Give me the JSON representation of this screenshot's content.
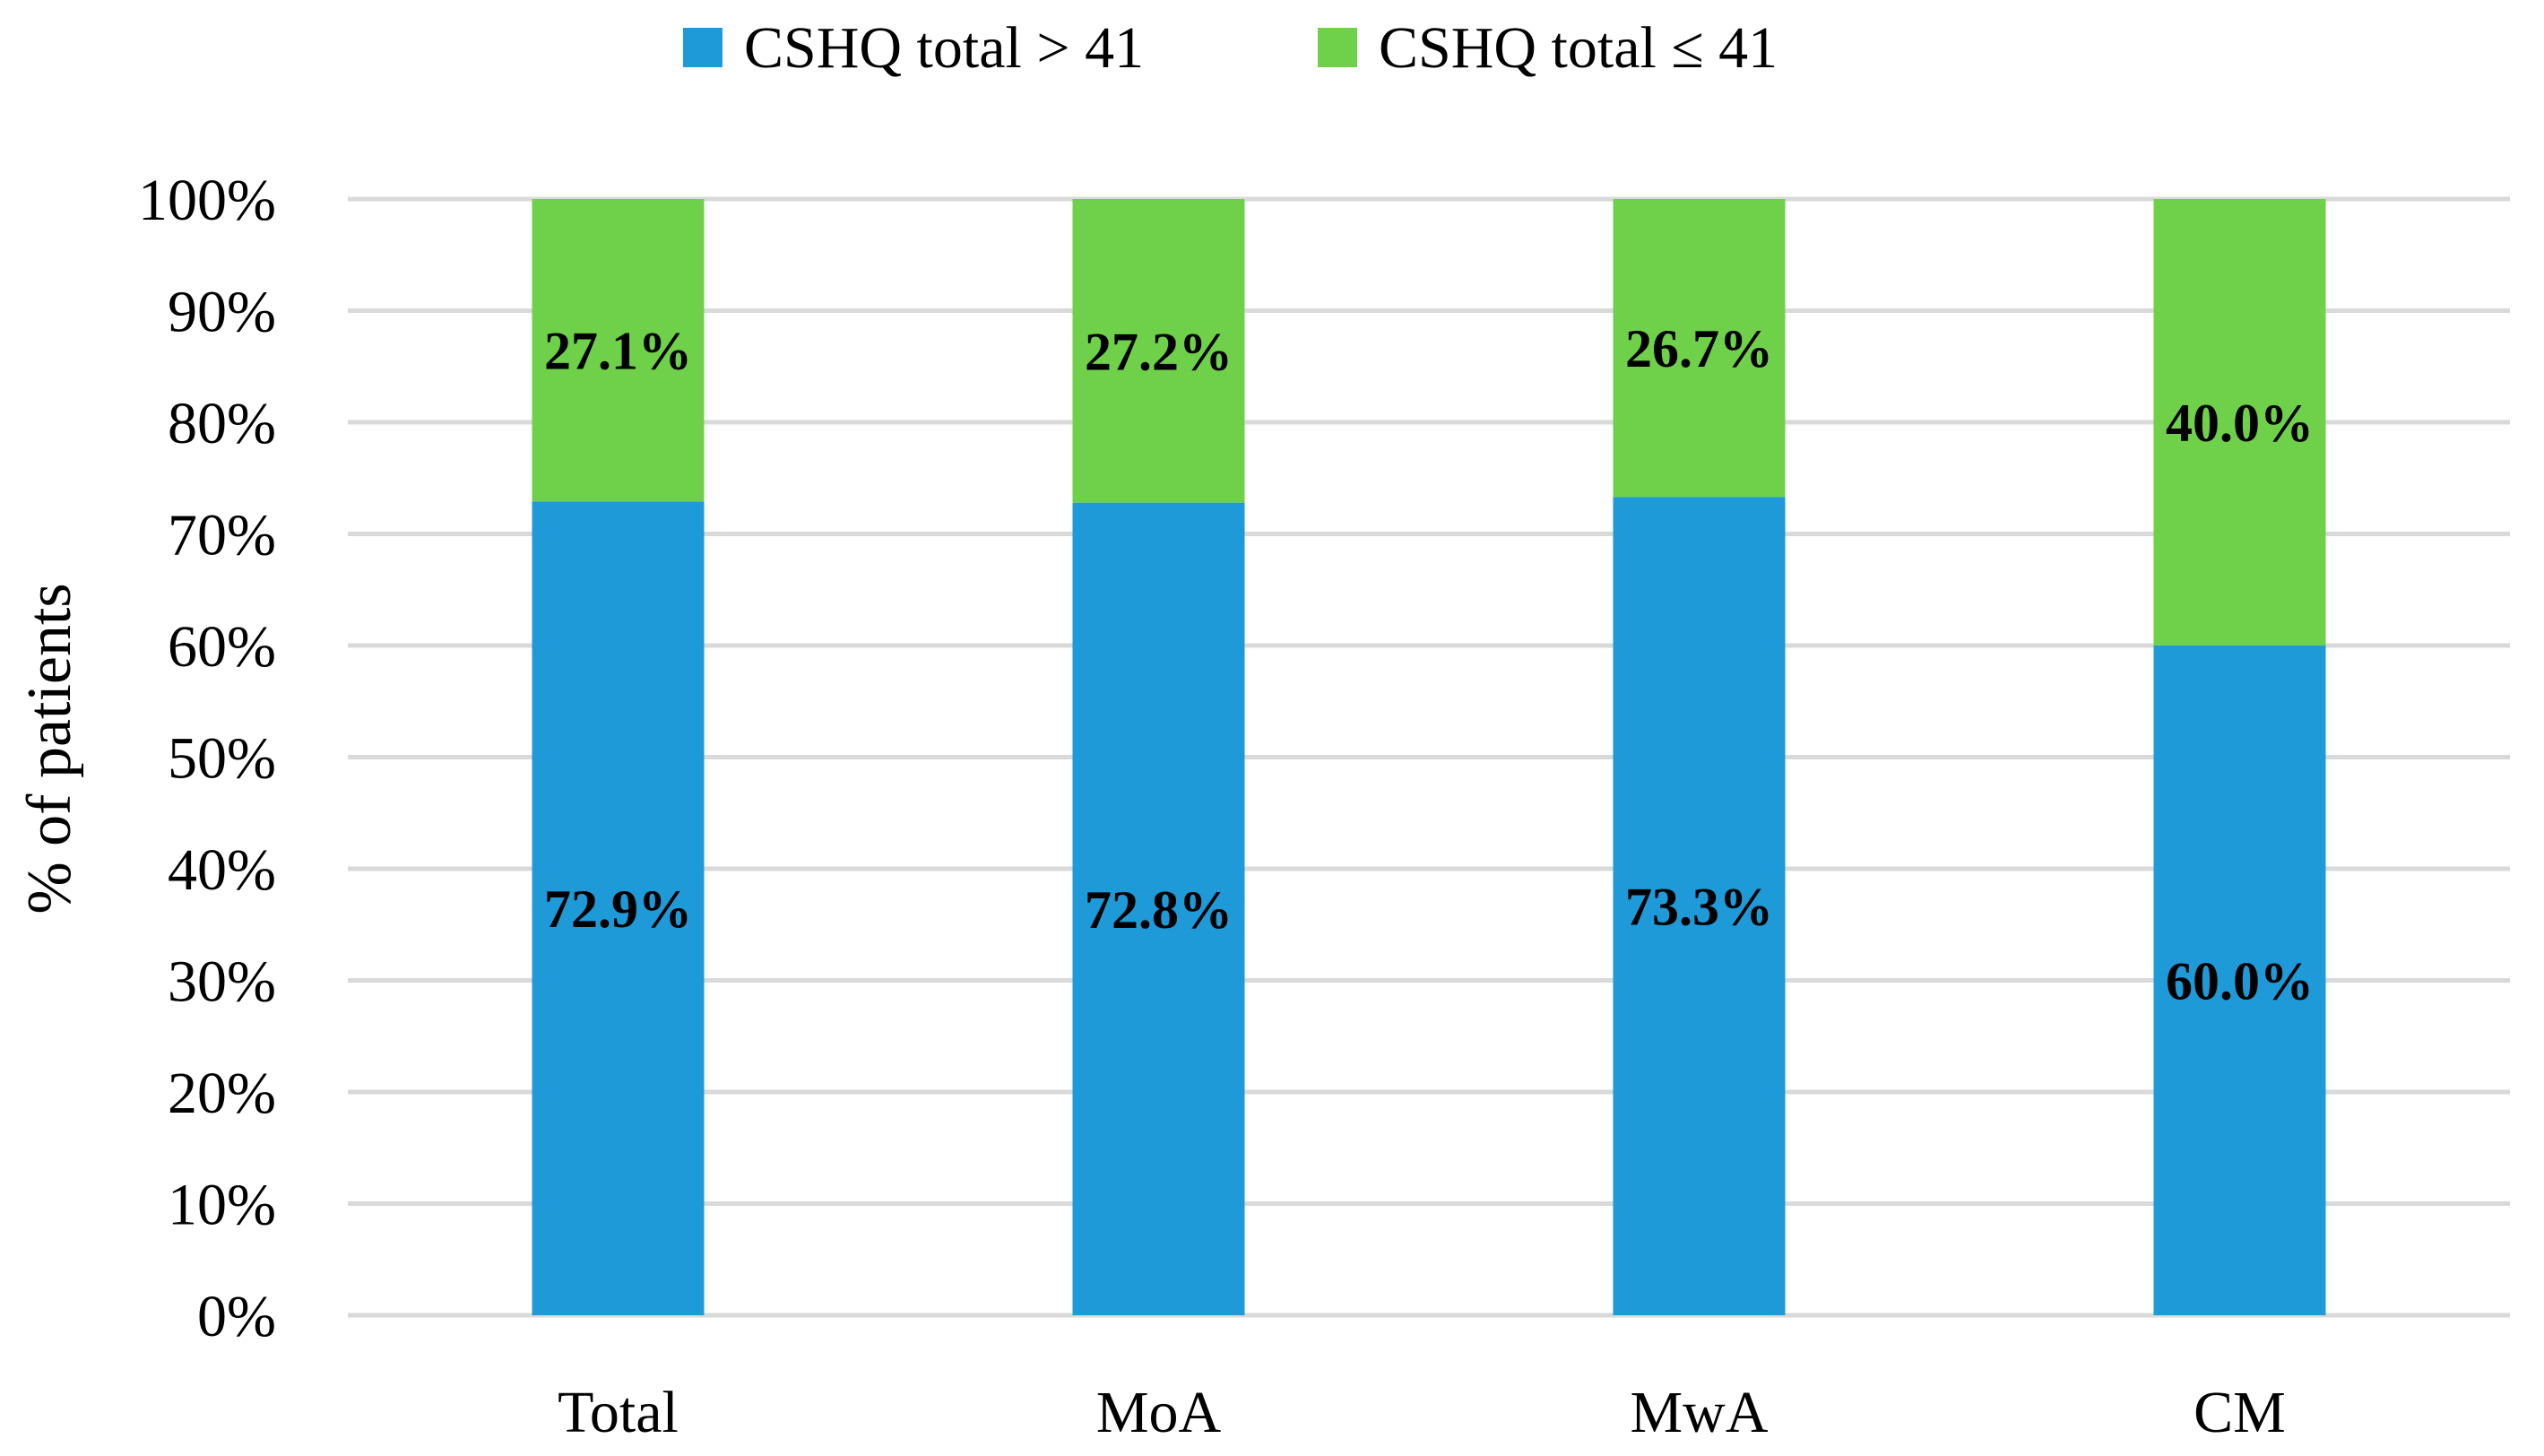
{
  "chart_data": {
    "type": "bar",
    "stacked": true,
    "categories": [
      "Total",
      "MoA",
      "MwA",
      "CM"
    ],
    "series": [
      {
        "name": "CSHQ total > 41",
        "color": "#1e9ad8",
        "values": [
          72.9,
          72.8,
          73.3,
          60.0
        ],
        "labels": [
          "72.9%",
          "72.8%",
          "73.3%",
          "60.0%"
        ]
      },
      {
        "name": "CSHQ total ≤ 41",
        "color": "#6fd14a",
        "values": [
          27.1,
          27.2,
          26.7,
          40.0
        ],
        "labels": [
          "27.1%",
          "27.2%",
          "26.7%",
          "40.0%"
        ]
      }
    ],
    "title": "",
    "xlabel": "",
    "ylabel": "% of patients",
    "ylim": [
      0,
      100
    ],
    "yticks": [
      "0%",
      "10%",
      "20%",
      "30%",
      "40%",
      "50%",
      "60%",
      "70%",
      "80%",
      "90%",
      "100%"
    ],
    "grid": true,
    "legend_position": "top-center",
    "gridline_color": "#d9d9d9"
  }
}
